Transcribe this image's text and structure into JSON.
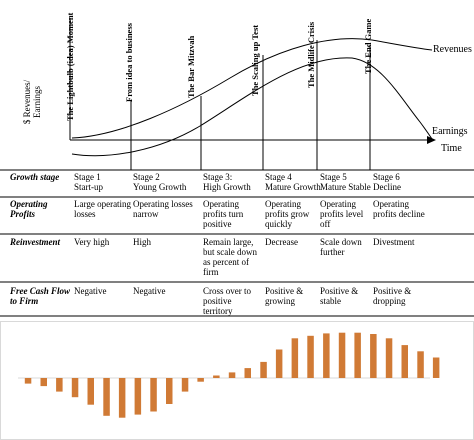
{
  "lifecycle": {
    "y_axis_label_lines": [
      "$ Revenues/",
      "Earnings"
    ],
    "x_axis_label": "Time",
    "curve_labels": {
      "revenues": "Revenues",
      "earnings": "Earnings"
    },
    "phases": [
      "The Lightbulb (idea) Moment",
      "From idea to business",
      "The Bar Mitzvah",
      "The Scaling up Test",
      "The Midlife Crisis",
      "The End Game"
    ]
  },
  "table": {
    "rows": [
      {
        "header": [
          "Growth stage"
        ],
        "cells": [
          [
            "Stage 1",
            "Start-up"
          ],
          [
            "Stage 2",
            "Young Growth"
          ],
          [
            "Stage 3:",
            "High Growth"
          ],
          [
            "Stage 4",
            "Mature Growth"
          ],
          [
            "Stage 5",
            "Mature Stable"
          ],
          [
            "Stage 6",
            "Decline"
          ]
        ]
      },
      {
        "header": [
          "Operating",
          "Profits"
        ],
        "cells": [
          [
            "Large operating",
            "losses"
          ],
          [
            "Operating losses",
            "narrow"
          ],
          [
            "Operating",
            "profits turn",
            "positive"
          ],
          [
            "Operating",
            "profits grow",
            "quickly"
          ],
          [
            "Operating",
            "profits level",
            "off"
          ],
          [
            "Operating",
            "profits decline"
          ]
        ]
      },
      {
        "header": [
          "Reinvestment"
        ],
        "cells": [
          [
            "Very high"
          ],
          [
            "High"
          ],
          [
            "Remain large,",
            "but scale down",
            "as percent of",
            "firm"
          ],
          [
            "Decrease"
          ],
          [
            "Scale down",
            "further"
          ],
          [
            "Divestment"
          ]
        ]
      },
      {
        "header": [
          "Free Cash Flow",
          "to Firm"
        ],
        "cells": [
          [
            "Negative"
          ],
          [
            "Negative"
          ],
          [
            "Cross over to",
            "positive",
            "territory"
          ],
          [
            "Positive &",
            "growing"
          ],
          [
            "Positive &",
            "stable"
          ],
          [
            "Positive &",
            "dropping"
          ]
        ]
      }
    ]
  },
  "chart_data": {
    "type": "bar",
    "title": "",
    "xlabel": "",
    "ylabel": "",
    "bar_color": "#d07a35",
    "grid": false,
    "values": [
      -0.9,
      -1.3,
      -2.2,
      -3.1,
      -4.3,
      -6.1,
      -6.4,
      -5.9,
      -5.4,
      -4.2,
      -2.2,
      -0.6,
      0.4,
      0.9,
      1.6,
      2.6,
      4.6,
      6.4,
      6.8,
      7.2,
      7.3,
      7.3,
      7.1,
      6.4,
      5.3,
      4.3,
      3.3
    ]
  }
}
